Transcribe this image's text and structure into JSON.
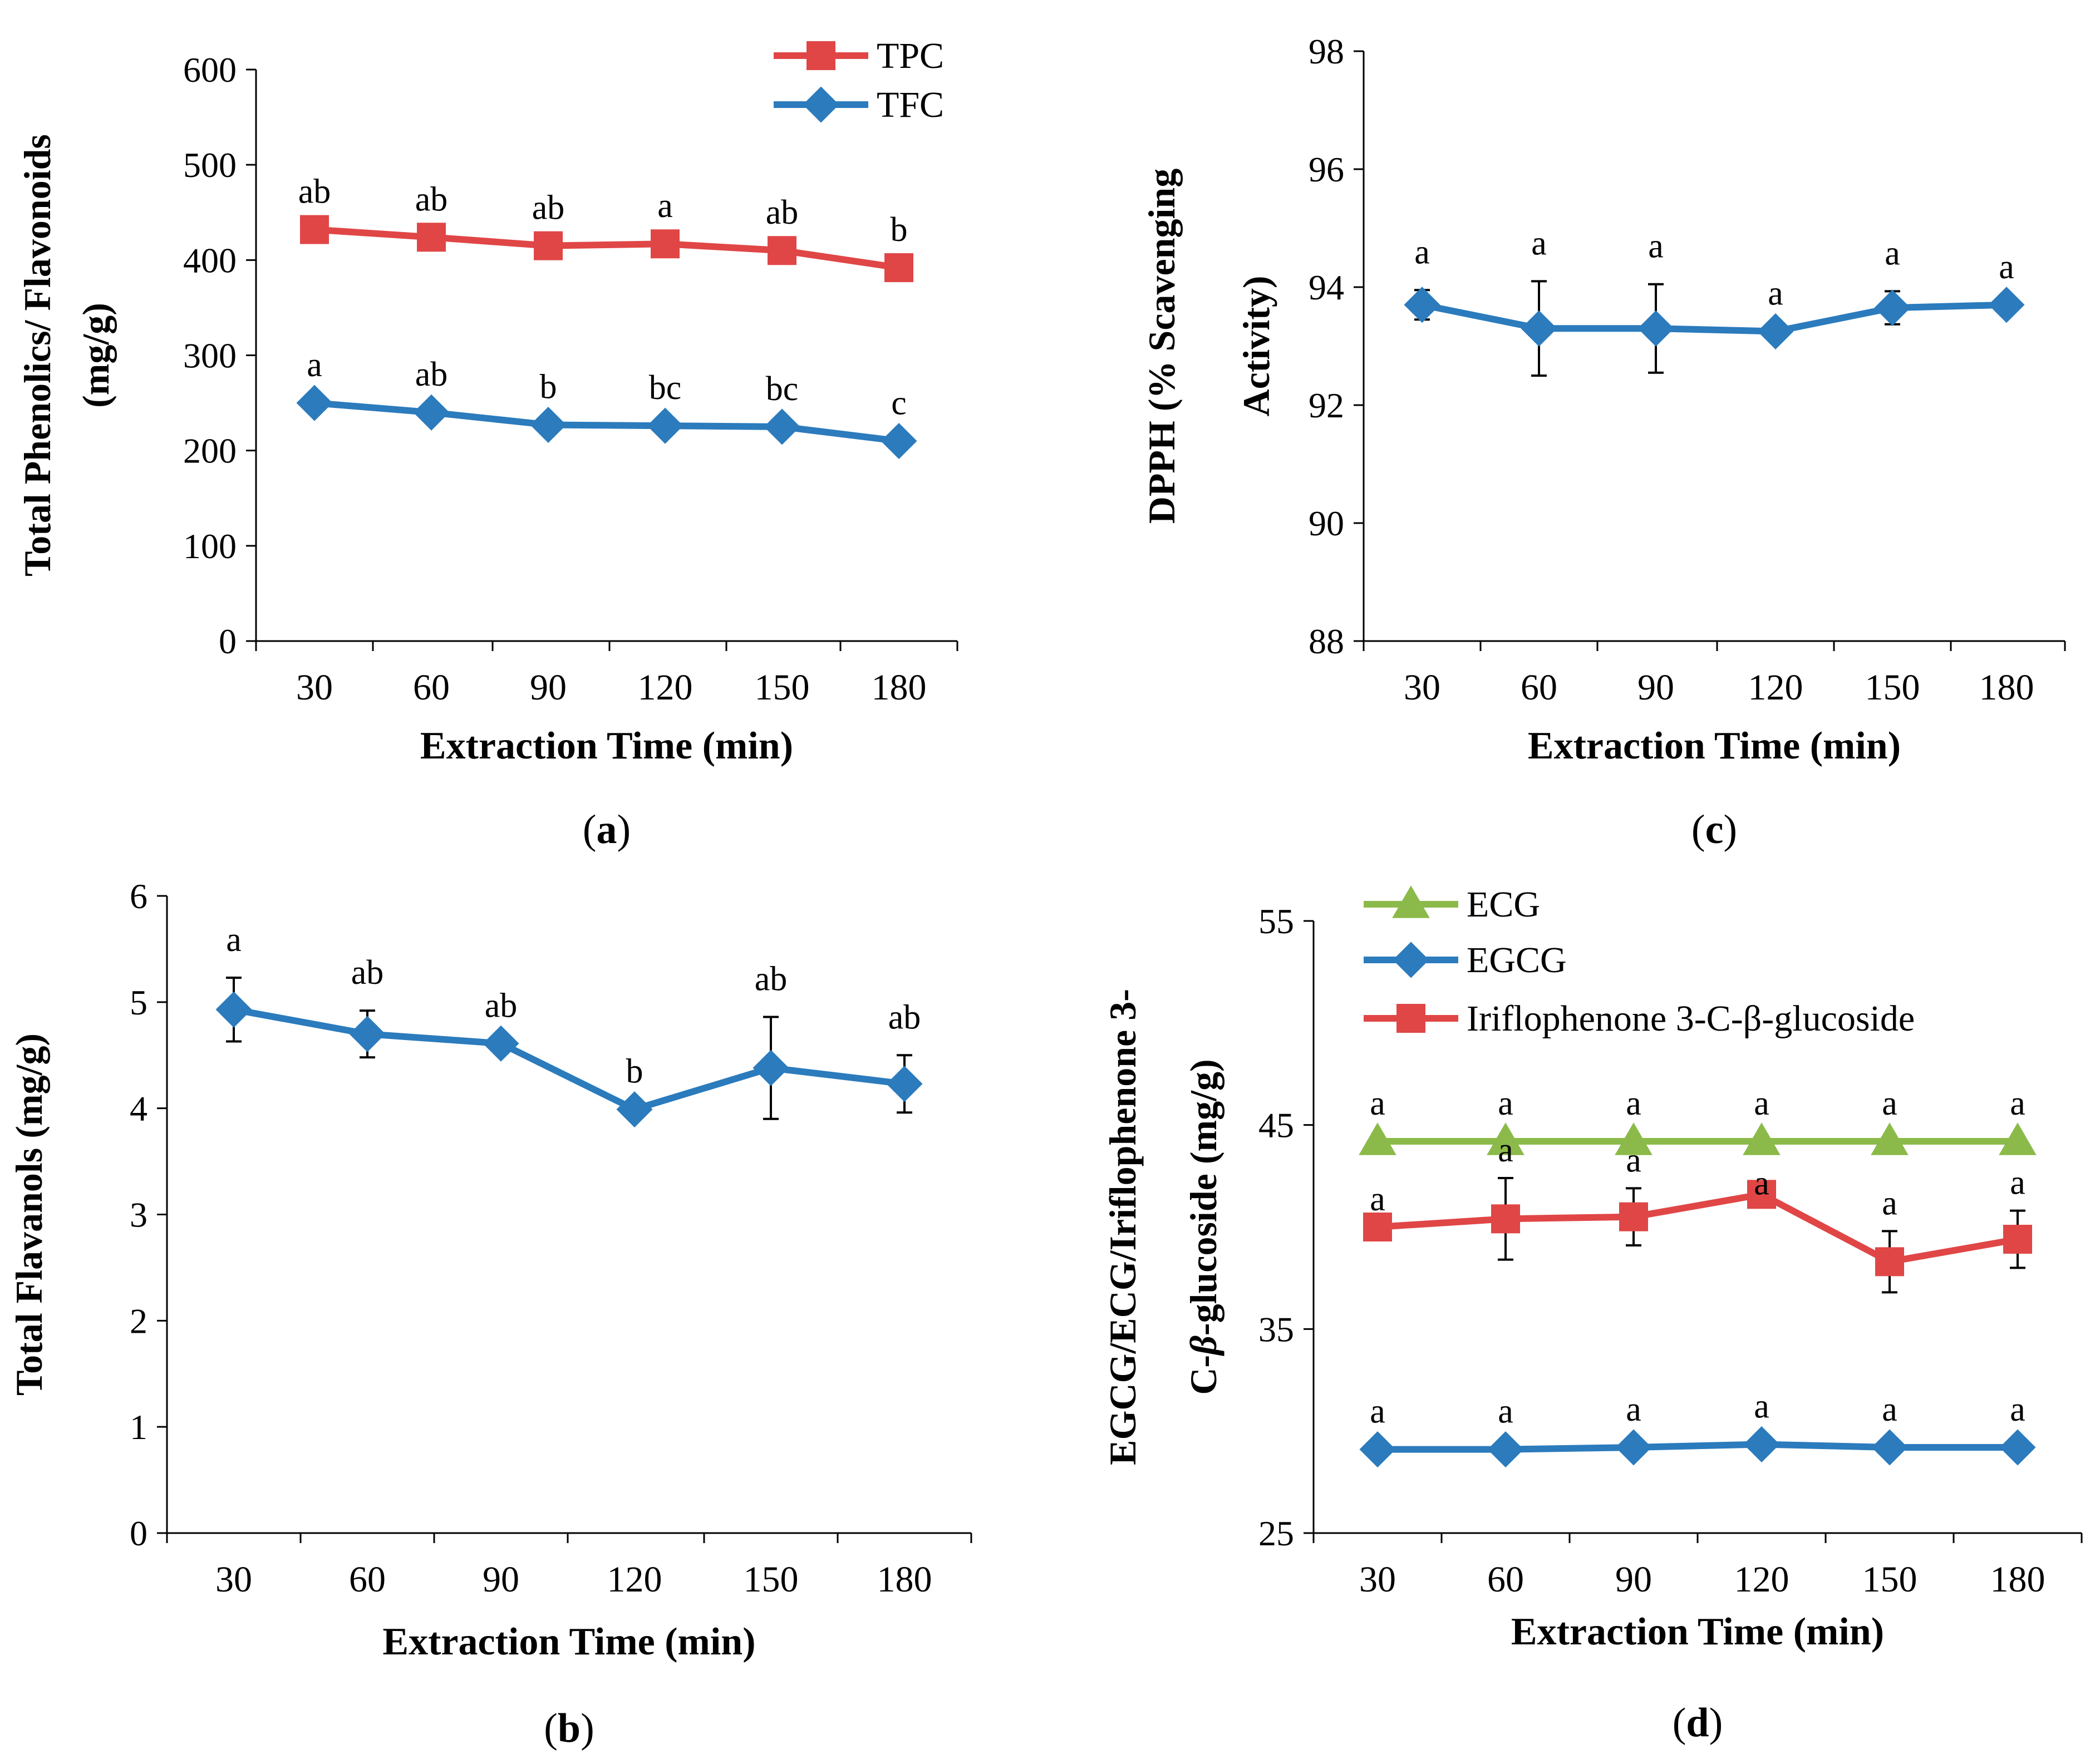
{
  "colors": {
    "red": "#e04646",
    "blue": "#2b7bbd",
    "green": "#8cba4a",
    "axis": "#000000"
  },
  "chart_data": [
    {
      "id": "a",
      "type": "line",
      "panel_label_open": "(",
      "panel_label_letter": "a",
      "panel_label_close": ")",
      "xlabel": "Extraction Time (min)",
      "ylabel_lines": [
        "Total Phenolics/ Flavonoids",
        "(mg/g)"
      ],
      "categories": [
        "30",
        "60",
        "90",
        "120",
        "150",
        "180"
      ],
      "ylim": [
        0,
        600
      ],
      "yticks": [
        0,
        100,
        200,
        300,
        400,
        500,
        600
      ],
      "ytick_labels": [
        "0",
        "100",
        "200",
        "300",
        "400",
        "500",
        "600"
      ],
      "legend": "top-right",
      "series": [
        {
          "name": "TPC",
          "color": "#e04646",
          "marker": "square",
          "values": [
            432,
            424,
            415,
            417,
            410,
            392
          ],
          "errors": [
            0,
            0,
            0,
            0,
            0,
            0
          ],
          "letters": [
            "ab",
            "ab",
            "ab",
            "a",
            "ab",
            "b"
          ]
        },
        {
          "name": "TFC",
          "color": "#2b7bbd",
          "marker": "diamond",
          "values": [
            250,
            240,
            227,
            226,
            225,
            210
          ],
          "errors": [
            0,
            0,
            0,
            0,
            0,
            0
          ],
          "letters": [
            "a",
            "ab",
            "b",
            "bc",
            "bc",
            "c"
          ]
        }
      ]
    },
    {
      "id": "c",
      "type": "line",
      "panel_label_open": "(",
      "panel_label_letter": "c",
      "panel_label_close": ")",
      "xlabel": "Extraction Time (min)",
      "ylabel_lines": [
        "DPPH (% Scavenging",
        "Activity)"
      ],
      "categories": [
        "30",
        "60",
        "90",
        "120",
        "150",
        "180"
      ],
      "ylim": [
        88,
        98
      ],
      "yticks": [
        88,
        90,
        92,
        94,
        96,
        98
      ],
      "ytick_labels": [
        "88",
        "90",
        "92",
        "94",
        "96",
        "98"
      ],
      "legend": "none",
      "series": [
        {
          "name": "DPPH",
          "color": "#2b7bbd",
          "marker": "diamond",
          "values": [
            93.7,
            93.3,
            93.3,
            93.25,
            93.65,
            93.7
          ],
          "errors": [
            0.25,
            0.8,
            0.75,
            0,
            0.28,
            0
          ],
          "letters": [
            "a",
            "a",
            "a",
            "a",
            "a",
            "a"
          ]
        }
      ]
    },
    {
      "id": "b",
      "type": "line",
      "panel_label_open": "(",
      "panel_label_letter": "b",
      "panel_label_close": ")",
      "xlabel": "Extraction Time (min)",
      "ylabel_lines": [
        "Total Flavanols (mg/g)"
      ],
      "categories": [
        "30",
        "60",
        "90",
        "120",
        "150",
        "180"
      ],
      "ylim": [
        0,
        6
      ],
      "yticks": [
        0,
        1,
        2,
        3,
        4,
        5,
        6
      ],
      "ytick_labels": [
        "0",
        "1",
        "2",
        "3",
        "4",
        "5",
        "6"
      ],
      "legend": "none",
      "series": [
        {
          "name": "Total Flavanols",
          "color": "#2b7bbd",
          "marker": "diamond",
          "values": [
            4.93,
            4.7,
            4.61,
            3.99,
            4.38,
            4.23
          ],
          "errors": [
            0.3,
            0.22,
            0,
            0,
            0.48,
            0.27
          ],
          "letters": [
            "a",
            "ab",
            "ab",
            "b",
            "ab",
            "ab"
          ]
        }
      ]
    },
    {
      "id": "d",
      "type": "line",
      "panel_label_open": "(",
      "panel_label_letter": "d",
      "panel_label_close": ")",
      "xlabel": "Extraction Time (min)",
      "ylabel_lines": [
        "EGCG/ECG/Iriflophenone 3-",
        "C-β-glucoside (mg/g)"
      ],
      "categories": [
        "30",
        "60",
        "90",
        "120",
        "150",
        "180"
      ],
      "ylim": [
        25,
        55
      ],
      "yticks": [
        25,
        35,
        45,
        55
      ],
      "ytick_labels": [
        "25",
        "35",
        "45",
        "55"
      ],
      "legend": "top-left",
      "series": [
        {
          "name": "ECG",
          "color": "#8cba4a",
          "marker": "triangle",
          "values": [
            44.2,
            44.2,
            44.2,
            44.2,
            44.2,
            44.2
          ],
          "errors": [
            0,
            0,
            0,
            0,
            0,
            0
          ],
          "letters": [
            "a",
            "a",
            "a",
            "a",
            "a",
            "a"
          ]
        },
        {
          "name": "EGCG",
          "color": "#2b7bbd",
          "marker": "diamond",
          "values": [
            29.1,
            29.1,
            29.2,
            29.35,
            29.2,
            29.2
          ],
          "errors": [
            0,
            0,
            0,
            0,
            0,
            0
          ],
          "letters": [
            "a",
            "a",
            "a",
            "a",
            "a",
            "a"
          ]
        },
        {
          "name": "Iriflophenone 3-C-β-glucoside",
          "color": "#e04646",
          "marker": "square",
          "values": [
            40.0,
            40.4,
            40.5,
            41.6,
            38.3,
            39.4
          ],
          "errors": [
            0,
            2.0,
            1.4,
            0,
            1.5,
            1.4
          ],
          "letters": [
            "a",
            "a",
            "a",
            "a",
            "a",
            "a"
          ]
        }
      ]
    }
  ]
}
